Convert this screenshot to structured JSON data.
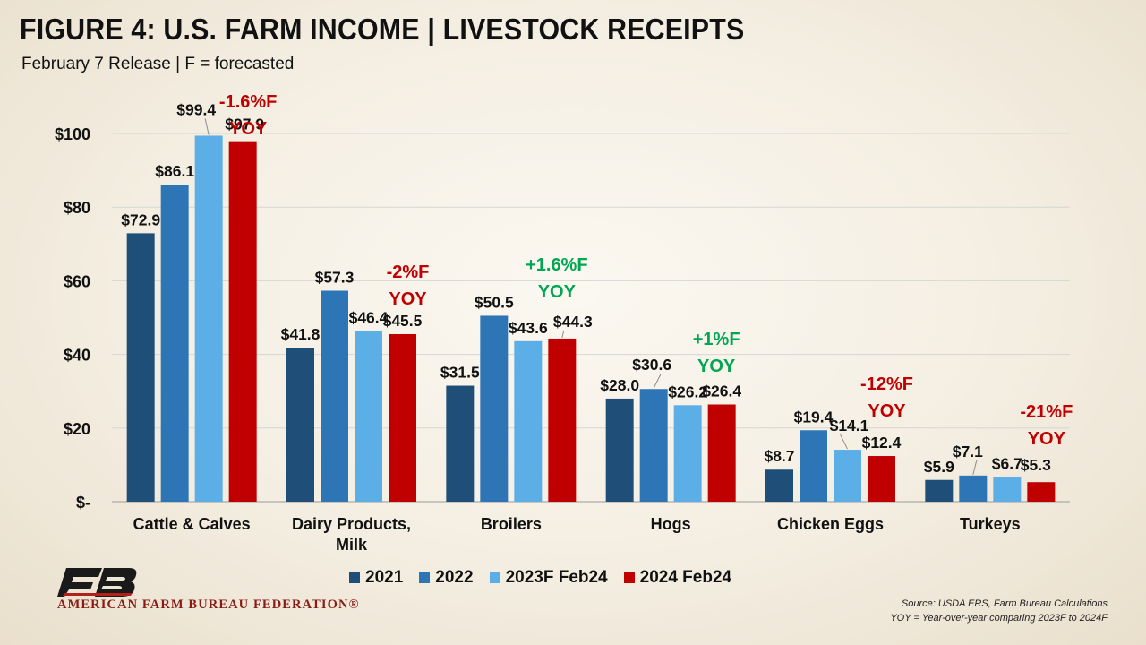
{
  "header": {
    "title": "FIGURE 4: U.S. FARM INCOME | LIVESTOCK RECEIPTS",
    "subtitle": "February 7 Release | F = forecasted"
  },
  "chart_data": {
    "type": "bar",
    "categories": [
      "Cattle & Calves",
      "Dairy Products, Milk",
      "Broilers",
      "Hogs",
      "Chicken Eggs",
      "Turkeys"
    ],
    "category_labels": [
      [
        "Cattle & Calves"
      ],
      [
        "Dairy Products,",
        "Milk"
      ],
      [
        "Broilers"
      ],
      [
        "Hogs"
      ],
      [
        "Chicken Eggs"
      ],
      [
        "Turkeys"
      ]
    ],
    "series": [
      {
        "name": "2021",
        "color": "#1f4e79",
        "values": [
          72.9,
          41.8,
          31.5,
          28.0,
          8.7,
          5.9
        ],
        "labels": [
          "$72.9",
          "$41.8",
          "$31.5",
          "$28.0",
          "$8.7",
          "$5.9"
        ]
      },
      {
        "name": "2022",
        "color": "#2e75b6",
        "values": [
          86.1,
          57.3,
          50.5,
          30.6,
          19.4,
          7.1
        ],
        "labels": [
          "$86.1",
          "$57.3",
          "$50.5",
          "$30.6",
          "$19.4",
          "$7.1"
        ]
      },
      {
        "name": "2023F Feb24",
        "color": "#5baee6",
        "values": [
          99.4,
          46.4,
          43.6,
          26.2,
          14.1,
          6.7
        ],
        "labels": [
          "$99.4",
          "$46.4",
          "$43.6",
          "$26.2",
          "$14.1",
          "$6.7"
        ]
      },
      {
        "name": "2024 Feb24",
        "color": "#c00000",
        "values": [
          97.9,
          45.5,
          44.3,
          26.4,
          12.4,
          5.3
        ],
        "labels": [
          "$97.9",
          "$45.5",
          "$44.3",
          "$26.4",
          "$12.4",
          "$5.3"
        ]
      }
    ],
    "yoy_annotations": [
      {
        "text": "-1.6%F",
        "sub": "YOY",
        "color": "#c00000"
      },
      {
        "text": "-2%F",
        "sub": "YOY",
        "color": "#c00000"
      },
      {
        "text": "+1.6%F",
        "sub": "YOY",
        "color": "#00a651"
      },
      {
        "text": "+1%F",
        "sub": "YOY",
        "color": "#00a651"
      },
      {
        "text": "-12%F",
        "sub": "YOY",
        "color": "#c00000"
      },
      {
        "text": "-21%F",
        "sub": "YOY",
        "color": "#c00000"
      }
    ],
    "yticks": [
      0,
      20,
      40,
      60,
      80,
      100
    ],
    "ytick_labels": [
      "$-",
      "$20",
      "$40",
      "$60",
      "$80",
      "$100"
    ],
    "ylim": [
      0,
      100
    ],
    "grid": true,
    "legend": "bottom",
    "xlabel": "",
    "ylabel": ""
  },
  "footer": {
    "logo_text": "AMERICAN FARM BUREAU FEDERATION®",
    "logo_mark": "FB",
    "source_line1": "Source: USDA ERS, Farm Bureau Calculations",
    "source_line2": "YOY = Year-over-year comparing 2023F to 2024F"
  }
}
